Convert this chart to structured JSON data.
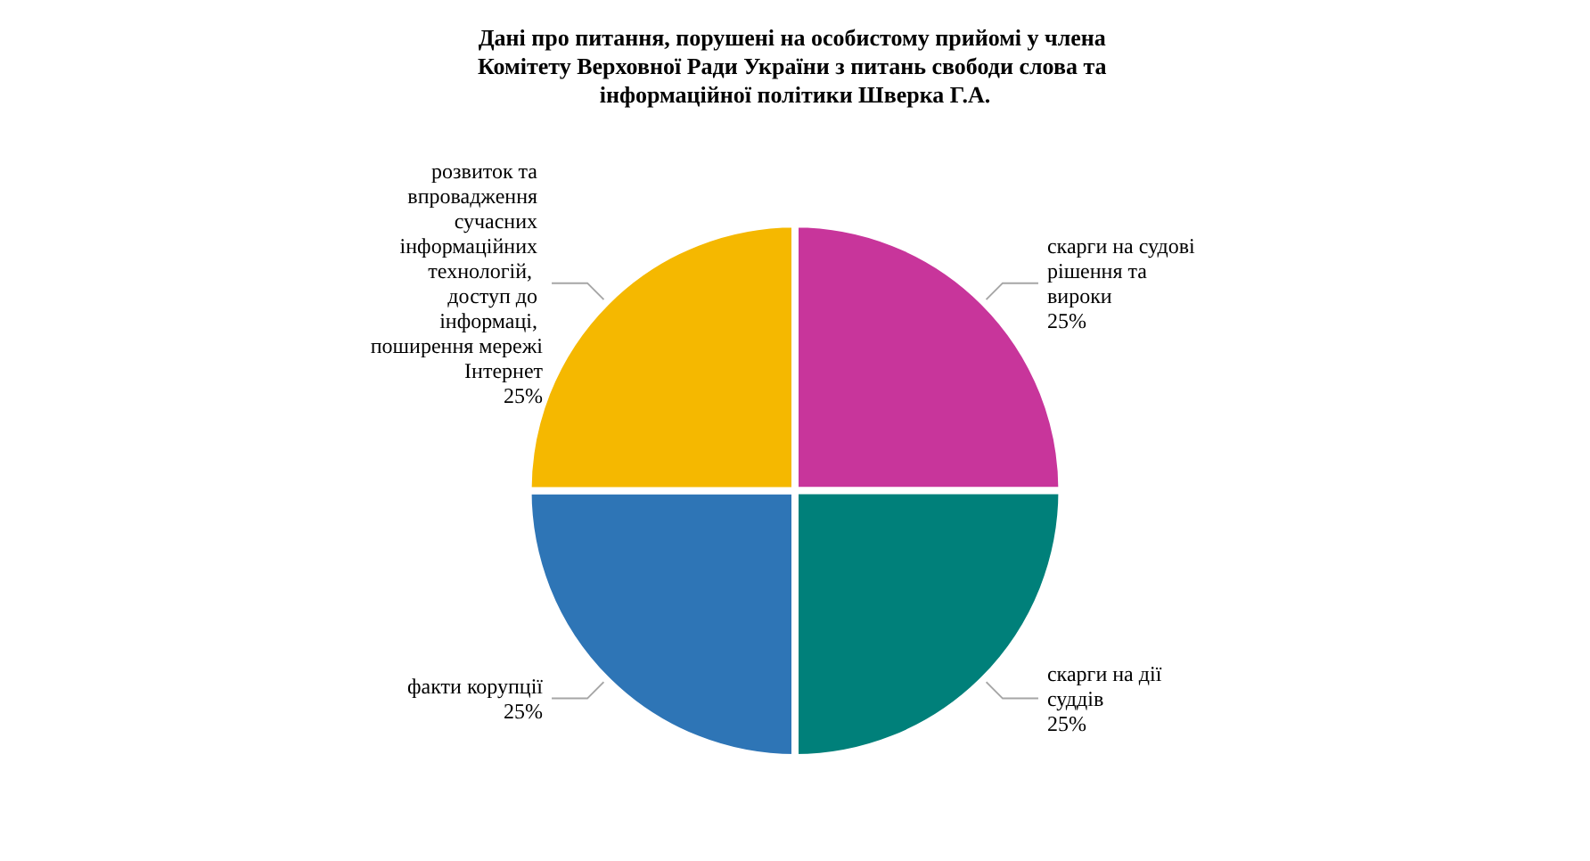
{
  "chart_data": {
    "type": "pie",
    "title": "Дані про питання, порушені на особистому прийомі у члена Комітету Верховної Ради України з питань свободи слова та інформаційної політики Шверка Г.А.",
    "categories": [
      "скарги на судові рішення та вироки",
      "скарги на дії  суддів",
      "факти корупції",
      "розвиток та впровадження сучасних інформаційних технологій,  доступ до інформаці, поширення мережі Інтернет"
    ],
    "values": [
      25,
      25,
      25,
      25
    ],
    "colors": [
      "#c8359b",
      "#00807a",
      "#2e75b6",
      "#f5b800"
    ],
    "value_labels": [
      "25%",
      "25%",
      "25%",
      "25%"
    ],
    "legend": false
  }
}
